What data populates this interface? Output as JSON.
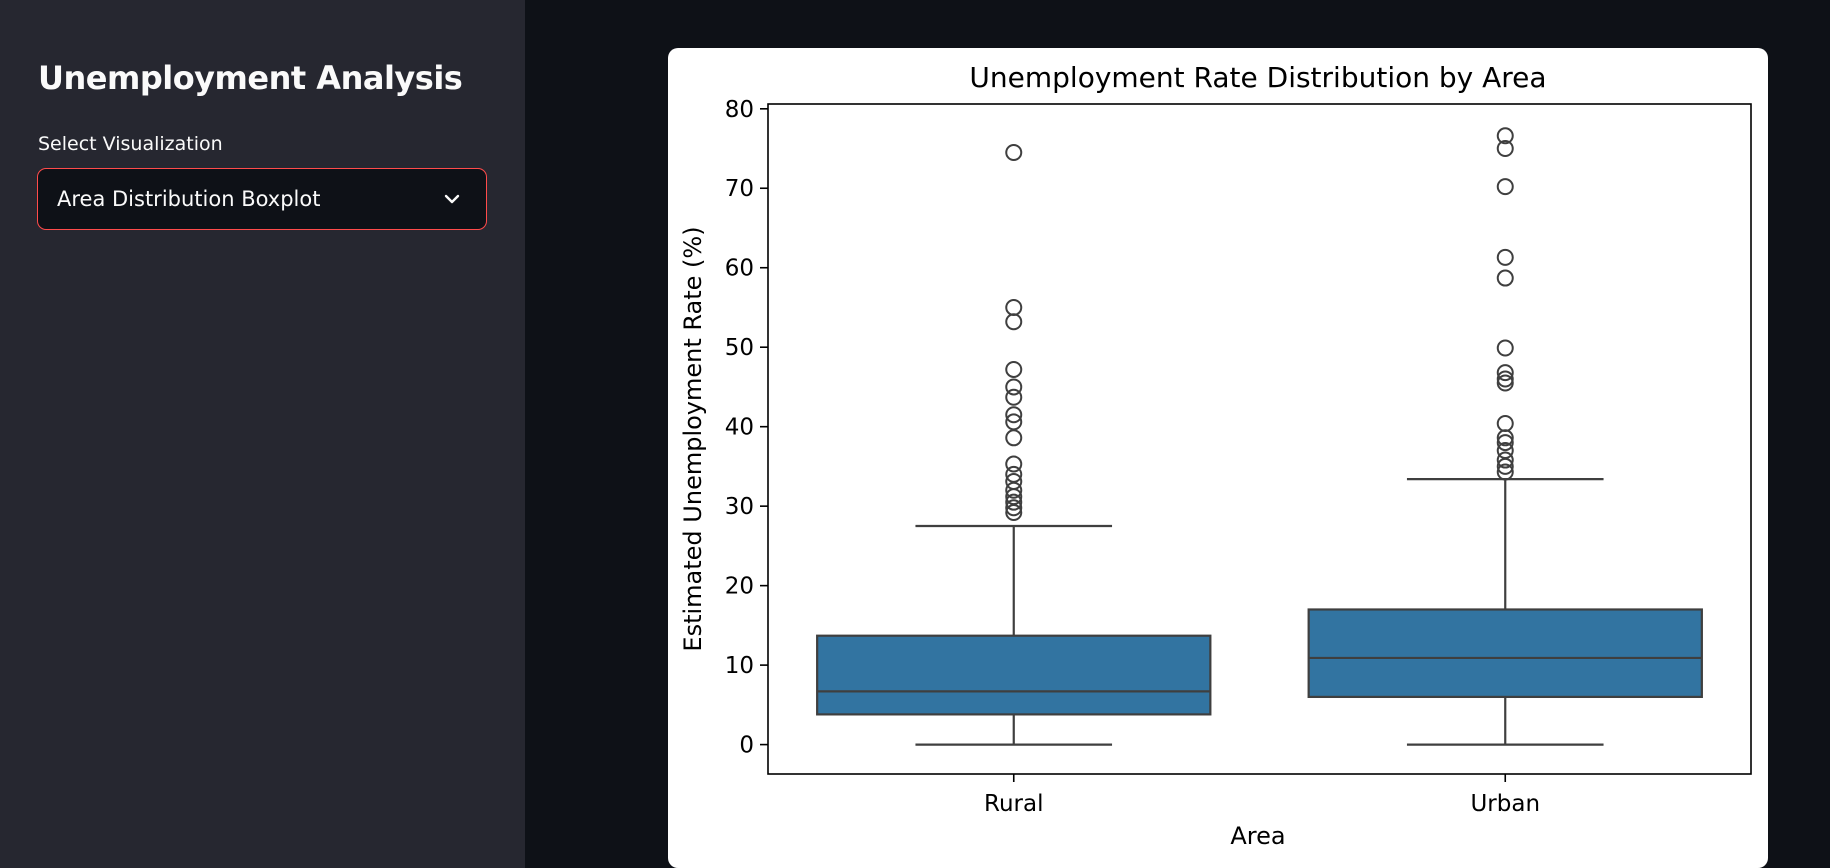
{
  "sidebar": {
    "title": "Unemployment Analysis",
    "select_label": "Select Visualization",
    "select_value": "Area Distribution Boxplot",
    "chevron_icon": "chevron-down-icon"
  },
  "colors": {
    "sidebar_bg": "#262730",
    "main_bg": "#0e1117",
    "select_border": "#ff4b4b",
    "box_fill": "#3274a1",
    "box_stroke": "#3f3f3f"
  },
  "chart_data": {
    "type": "boxplot",
    "title": "Unemployment Rate Distribution by Area",
    "xlabel": "Area",
    "ylabel": "Estimated Unemployment Rate (%)",
    "ylim": [
      -3.7,
      80.6
    ],
    "yticks": [
      0,
      10,
      20,
      30,
      40,
      50,
      60,
      70,
      80
    ],
    "grid": false,
    "categories": [
      "Rural",
      "Urban"
    ],
    "series": [
      {
        "category": "Rural",
        "whisker_low": 0,
        "q1": 3.8,
        "median": 6.7,
        "q3": 13.7,
        "whisker_high": 27.5,
        "outliers": [
          29.2,
          29.8,
          30.5,
          31.2,
          32.0,
          33.1,
          34.0,
          35.3,
          38.6,
          40.6,
          41.5,
          43.7,
          45.0,
          47.2,
          53.2,
          55.0,
          74.5
        ]
      },
      {
        "category": "Urban",
        "whisker_low": 0,
        "q1": 6.0,
        "median": 10.9,
        "q3": 17.0,
        "whisker_high": 33.4,
        "outliers": [
          34.3,
          35.0,
          35.8,
          37.0,
          38.0,
          38.6,
          40.4,
          45.5,
          46.0,
          46.8,
          49.9,
          58.7,
          61.3,
          70.2,
          75.0,
          76.6
        ]
      }
    ]
  }
}
